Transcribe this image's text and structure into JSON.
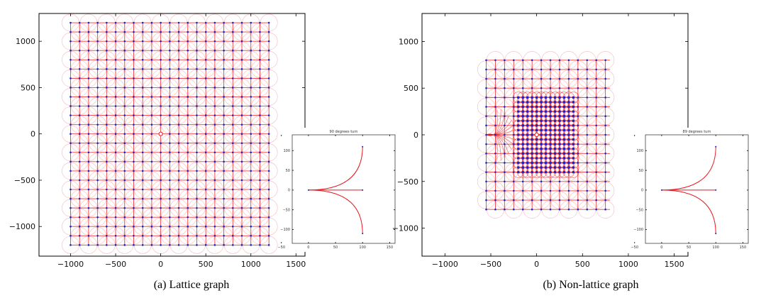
{
  "figures": [
    {
      "caption": "(a) Lattice graph",
      "main_plot": {
        "type": "scatter",
        "xlim": [
          -1350,
          1600
        ],
        "ylim": [
          -1320,
          1300
        ],
        "xticks": [
          -1000,
          -500,
          0,
          500,
          1000,
          1500
        ],
        "yticks": [
          1000,
          500,
          0,
          -500,
          -1000
        ],
        "tick_labels_x": [
          "−1000",
          "−500",
          "0",
          "500",
          "1000",
          "1500"
        ],
        "tick_labels_y": [
          "1000",
          "500",
          "0",
          "−500",
          "−1000"
        ],
        "grid": {
          "kind": "lattice",
          "x_range": [
            -1000,
            1200
          ],
          "y_range": [
            -1200,
            1200
          ],
          "step": 100
        }
      },
      "inset": {
        "title": "90 degrees turn",
        "xlim": [
          -30,
          160
        ],
        "ylim": [
          -135,
          140
        ],
        "xticks": [
          -50,
          0,
          50,
          100,
          150
        ],
        "yticks": [
          100,
          50,
          0,
          -50,
          -100
        ],
        "tick_labels_x": [
          "−50",
          "0",
          "50",
          "100",
          "150"
        ],
        "tick_labels_y": [
          "100",
          "50",
          "0",
          "−50",
          "−100"
        ],
        "curve": {
          "end_x": 100,
          "end_y": 110
        }
      }
    },
    {
      "caption": "(b) Non-lattice graph",
      "main_plot": {
        "type": "scatter",
        "xlim": [
          -1250,
          1650
        ],
        "ylim": [
          -1300,
          1300
        ],
        "xticks": [
          -1000,
          -500,
          0,
          500,
          1000,
          1500
        ],
        "yticks": [
          1000,
          500,
          0,
          -500,
          -1000
        ],
        "tick_labels_x": [
          "−1000",
          "−500",
          "0",
          "500",
          "1000",
          "1500"
        ],
        "tick_labels_y": [
          "1000",
          "500",
          "0",
          "−500",
          "−1000"
        ],
        "grid": {
          "kind": "non-lattice",
          "x_range": [
            -550,
            800
          ],
          "y_range": [
            -800,
            800
          ],
          "step": 100,
          "dense_x_range": [
            -200,
            400
          ],
          "dense_y_range": [
            -400,
            400
          ],
          "dense_step": 50
        }
      },
      "inset": {
        "title": "89 degrees turn",
        "xlim": [
          -30,
          160
        ],
        "ylim": [
          -135,
          140
        ],
        "xticks": [
          -50,
          0,
          50,
          100,
          150
        ],
        "yticks": [
          100,
          50,
          0,
          -50,
          -100
        ],
        "tick_labels_x": [
          "−50",
          "0",
          "50",
          "100",
          "150"
        ],
        "tick_labels_y": [
          "100",
          "50",
          "0",
          "−50",
          "−100"
        ],
        "curve": {
          "end_x": 100,
          "end_y": 110
        }
      }
    }
  ],
  "colors": {
    "edge_red": "#e6191f",
    "edge_pink": "#f3a3a7",
    "node_blue": "#1a22c8",
    "axis": "#000000"
  }
}
